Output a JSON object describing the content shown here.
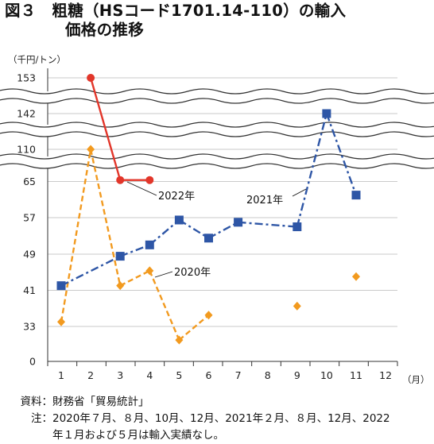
{
  "title_line1": "図３　粗糖（HSコード1701.14-110）の輸入",
  "title_line2": "価格の推移",
  "chart_data": {
    "type": "line",
    "unit_label": "（千円/トン）",
    "x_unit_label": "（月）",
    "categories": [
      "1",
      "2",
      "3",
      "4",
      "5",
      "6",
      "7",
      "8",
      "9",
      "10",
      "11",
      "12"
    ],
    "y_ticks": [
      "0",
      "33",
      "41",
      "49",
      "57",
      "65",
      "110",
      "142",
      "153"
    ],
    "y_axis_break": true,
    "grid": "horizontal",
    "series": [
      {
        "name": "2020年",
        "style": "dashed",
        "marker": "diamond",
        "color": "#F29A1F",
        "points": [
          {
            "month": 1,
            "value": 34.0,
            "connect": true
          },
          {
            "month": 2,
            "value": 110,
            "connect": true
          },
          {
            "month": 3,
            "value": 42.0,
            "connect": true
          },
          {
            "month": 4,
            "value": 45.3,
            "connect": true
          },
          {
            "month": 5,
            "value": 30.0,
            "connect": true
          },
          {
            "month": 6,
            "value": 35.5,
            "connect": true
          },
          {
            "month": 9,
            "value": 37.5,
            "connect": false
          },
          {
            "month": 11,
            "value": 44.0,
            "connect": false
          }
        ]
      },
      {
        "name": "2021年",
        "style": "dash-dot",
        "marker": "square",
        "color": "#2E56A6",
        "points": [
          {
            "month": 1,
            "value": 42.0,
            "connect": false
          },
          {
            "month": 3,
            "value": 48.5,
            "connect": true
          },
          {
            "month": 4,
            "value": 51.0,
            "connect": true
          },
          {
            "month": 5,
            "value": 56.5,
            "connect": true
          },
          {
            "month": 6,
            "value": 52.5,
            "connect": true
          },
          {
            "month": 7,
            "value": 56.0,
            "connect": true
          },
          {
            "month": 9,
            "value": 55.0,
            "connect": true
          },
          {
            "month": 10,
            "value": 142,
            "connect": true
          },
          {
            "month": 11,
            "value": 62.0,
            "connect": true
          }
        ]
      },
      {
        "name": "2022年",
        "style": "solid",
        "marker": "circle",
        "color": "#E2362A",
        "points": [
          {
            "month": 2,
            "value": 153,
            "connect": true
          },
          {
            "month": 3,
            "value": 67.0,
            "connect": true
          },
          {
            "month": 4,
            "value": 67.0,
            "connect": true
          }
        ]
      }
    ]
  },
  "source": {
    "label1": "資料：",
    "text1": "財務省「貿易統計」",
    "label2": "注：",
    "text2": "2020年７月、８月、10月、12月、2021年２月、８月、12月、2022",
    "text3": "年１月および５月は輸入実績なし。"
  }
}
